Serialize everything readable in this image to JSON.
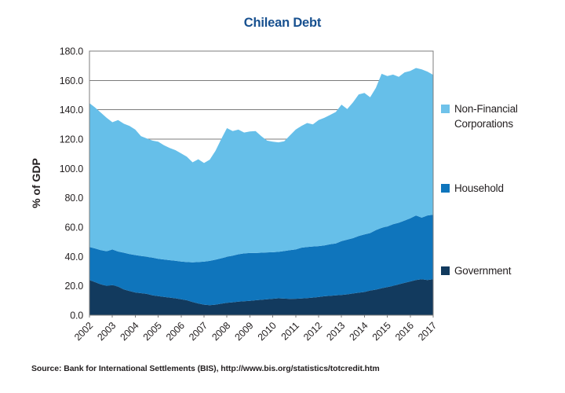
{
  "title": "Chilean Debt",
  "y_axis": {
    "label": "% of GDP",
    "min": 0,
    "max": 180,
    "step": 20,
    "tick_labels": [
      "0.0",
      "20.0",
      "40.0",
      "60.0",
      "80.0",
      "100.0",
      "120.0",
      "140.0",
      "160.0",
      "180.0"
    ]
  },
  "x_axis": {
    "tick_labels": [
      "2002",
      "2003",
      "2004",
      "2005",
      "2006",
      "2007",
      "2008",
      "2009",
      "2010",
      "2011",
      "2012",
      "2013",
      "2014",
      "2015",
      "2016",
      "2017"
    ]
  },
  "legend": [
    {
      "label": "Non-Financial Corporations",
      "color": "#6FC2EA"
    },
    {
      "label": "Household",
      "color": "#0F75BC"
    },
    {
      "label": "Government",
      "color": "#123A5E"
    }
  ],
  "source": "Source: Bank for International Settlements (BIS), http://www.bis.org/statistics/totcredit.htm",
  "colors": {
    "title": "#17508F",
    "gridline": "#7C7C7C",
    "frame": "#7C7C7C",
    "text": "#231F20"
  },
  "chart_data": {
    "type": "area",
    "stacked": true,
    "title": "Chilean Debt",
    "ylabel": "% of GDP",
    "ylim": [
      0,
      180
    ],
    "grid": "horizontal",
    "legend_position": "right",
    "frequency": "quarterly",
    "x_start": "2002-Q1",
    "x_end": "2017-Q1",
    "x_tick_labels": [
      "2002",
      "2003",
      "2004",
      "2005",
      "2006",
      "2007",
      "2008",
      "2009",
      "2010",
      "2011",
      "2012",
      "2013",
      "2014",
      "2015",
      "2016",
      "2017"
    ],
    "series": [
      {
        "name": "Government",
        "color": "#123A5E",
        "values": [
          24.0,
          22.5,
          21.0,
          20.0,
          20.5,
          19.5,
          17.5,
          16.5,
          15.5,
          15.0,
          14.5,
          13.5,
          13.0,
          12.5,
          12.0,
          11.5,
          10.8,
          10.2,
          9.0,
          8.0,
          7.2,
          6.8,
          7.2,
          7.8,
          8.4,
          8.8,
          9.2,
          9.5,
          9.8,
          10.2,
          10.5,
          10.8,
          11.2,
          11.5,
          11.3,
          11.1,
          11.2,
          11.4,
          11.6,
          12.0,
          12.4,
          12.9,
          13.2,
          13.5,
          13.8,
          14.2,
          14.8,
          15.3,
          15.8,
          16.8,
          17.4,
          18.3,
          19.2,
          20.0,
          21.0,
          22.0,
          23.0,
          24.0,
          24.5,
          24.0,
          24.5
        ]
      },
      {
        "name": "Household",
        "color": "#0F75BC",
        "values": [
          22.5,
          23.0,
          23.3,
          23.6,
          24.3,
          23.9,
          25.1,
          25.1,
          25.5,
          25.4,
          25.3,
          25.7,
          25.4,
          25.5,
          25.5,
          25.6,
          25.8,
          26.0,
          27.0,
          28.2,
          29.3,
          30.2,
          30.6,
          31.0,
          31.4,
          31.8,
          32.3,
          32.6,
          32.6,
          32.2,
          32.1,
          32.0,
          31.7,
          31.7,
          32.4,
          33.2,
          33.6,
          34.6,
          34.9,
          34.8,
          34.7,
          34.6,
          35.1,
          35.4,
          36.7,
          37.3,
          37.7,
          38.7,
          39.2,
          39.2,
          40.6,
          41.2,
          41.3,
          42.0,
          42.0,
          42.5,
          43.0,
          44.0,
          42.0,
          44.0,
          44.0
        ]
      },
      {
        "name": "Non-Financial Corporations",
        "color": "#66BFE9",
        "values": [
          98.0,
          96.0,
          93.7,
          90.9,
          86.7,
          89.6,
          87.9,
          87.4,
          85.5,
          81.6,
          80.7,
          79.8,
          79.9,
          77.8,
          76.5,
          75.4,
          73.7,
          71.8,
          68.2,
          70.1,
          67.2,
          69.0,
          74.2,
          81.2,
          87.7,
          84.9,
          85.0,
          82.4,
          82.8,
          83.1,
          79.4,
          76.2,
          75.4,
          74.6,
          74.8,
          78.2,
          81.7,
          83.0,
          84.5,
          83.2,
          85.9,
          87.0,
          88.2,
          89.6,
          93.0,
          89.0,
          92.5,
          96.5,
          96.5,
          92.5,
          97.0,
          105.0,
          102.5,
          102.0,
          99.5,
          101.0,
          100.5,
          100.5,
          101.0,
          98.0,
          95.3
        ]
      }
    ]
  }
}
